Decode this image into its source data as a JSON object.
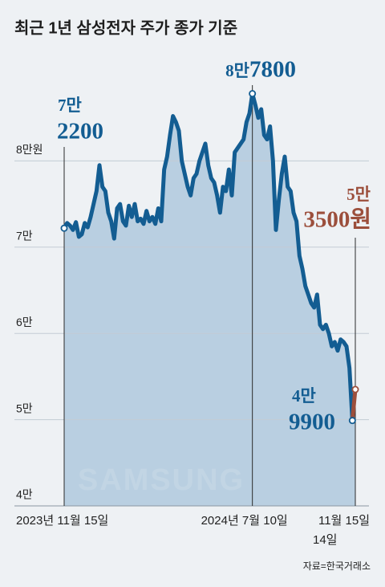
{
  "title": "최근 1년 삼성전자 주가 종가 기준",
  "source": "자료=한국거래소",
  "chart_data": {
    "type": "line",
    "watermark": "SAMSUNG",
    "color": "#135d92",
    "last_segment_color": "#9c4f3c",
    "area_color": "#b9cfe1",
    "grid": true,
    "ylim": [
      40000,
      90000
    ],
    "yticks": [
      {
        "value": 40000,
        "label": "4만"
      },
      {
        "value": 50000,
        "label": "5만"
      },
      {
        "value": 60000,
        "label": "6만"
      },
      {
        "value": 70000,
        "label": "7만"
      },
      {
        "value": 80000,
        "label": "8만원"
      }
    ],
    "categories": [
      "2023년 11월 15일",
      null,
      null,
      null,
      null,
      null,
      null,
      null,
      null,
      null,
      null,
      null,
      null,
      null,
      null,
      null,
      null,
      null,
      null,
      null,
      null,
      null,
      null,
      null,
      null,
      null,
      null,
      null,
      null,
      null,
      null,
      null,
      null,
      null,
      null,
      null,
      null,
      null,
      null,
      null,
      null,
      null,
      null,
      null,
      null,
      null,
      null,
      null,
      null,
      null,
      null,
      null,
      null,
      null,
      null,
      null,
      null,
      null,
      null,
      null,
      null,
      null,
      null,
      null,
      "2024년 7월 10일",
      null,
      null,
      null,
      null,
      null,
      null,
      null,
      null,
      null,
      null,
      null,
      null,
      null,
      null,
      null,
      null,
      null,
      null,
      null,
      null,
      null,
      null,
      null,
      null,
      null,
      null,
      null,
      null,
      null,
      null,
      null,
      null,
      null,
      "14일",
      "11월 15일"
    ],
    "values": [
      72200,
      72800,
      72500,
      72000,
      72900,
      71200,
      71500,
      72800,
      72300,
      73500,
      75000,
      76500,
      79500,
      77000,
      76500,
      74000,
      73000,
      71000,
      74500,
      75000,
      73000,
      72500,
      74800,
      73500,
      75000,
      73000,
      73300,
      72700,
      74200,
      73000,
      73500,
      72700,
      74500,
      73000,
      79000,
      80500,
      83000,
      85200,
      84500,
      83500,
      80000,
      78500,
      77000,
      76000,
      78000,
      78500,
      80000,
      81000,
      82000,
      79500,
      78000,
      77500,
      76000,
      74000,
      77000,
      76500,
      79000,
      76000,
      81000,
      81500,
      82000,
      82500,
      84500,
      85500,
      87800,
      86500,
      85000,
      86000,
      83000,
      82500,
      84000,
      80000,
      72000,
      75500,
      78500,
      80500,
      77000,
      76500,
      74000,
      73000,
      69000,
      67500,
      65500,
      64500,
      63500,
      63000,
      64500,
      61000,
      60500,
      61000,
      60000,
      58500,
      59000,
      58000,
      59300,
      59000,
      58500,
      56000,
      49900,
      53500
    ],
    "value_labels": [
      [
        "7만",
        "2200"
      ],
      null,
      null,
      null,
      null,
      null,
      null,
      null,
      null,
      null,
      null,
      null,
      null,
      null,
      null,
      null,
      null,
      null,
      null,
      null,
      null,
      null,
      null,
      null,
      null,
      null,
      null,
      null,
      null,
      null,
      null,
      null,
      null,
      null,
      null,
      null,
      null,
      null,
      null,
      null,
      null,
      null,
      null,
      null,
      null,
      null,
      null,
      null,
      null,
      null,
      null,
      null,
      null,
      null,
      null,
      null,
      null,
      null,
      null,
      null,
      null,
      null,
      null,
      null,
      [
        "8만",
        "7800"
      ],
      null,
      null,
      null,
      null,
      null,
      null,
      null,
      null,
      null,
      null,
      null,
      null,
      null,
      null,
      null,
      null,
      null,
      null,
      null,
      null,
      null,
      null,
      null,
      null,
      null,
      null,
      null,
      null,
      null,
      null,
      null,
      null,
      null,
      [
        "4만",
        "9900"
      ],
      [
        "5만",
        "3500원"
      ]
    ]
  }
}
